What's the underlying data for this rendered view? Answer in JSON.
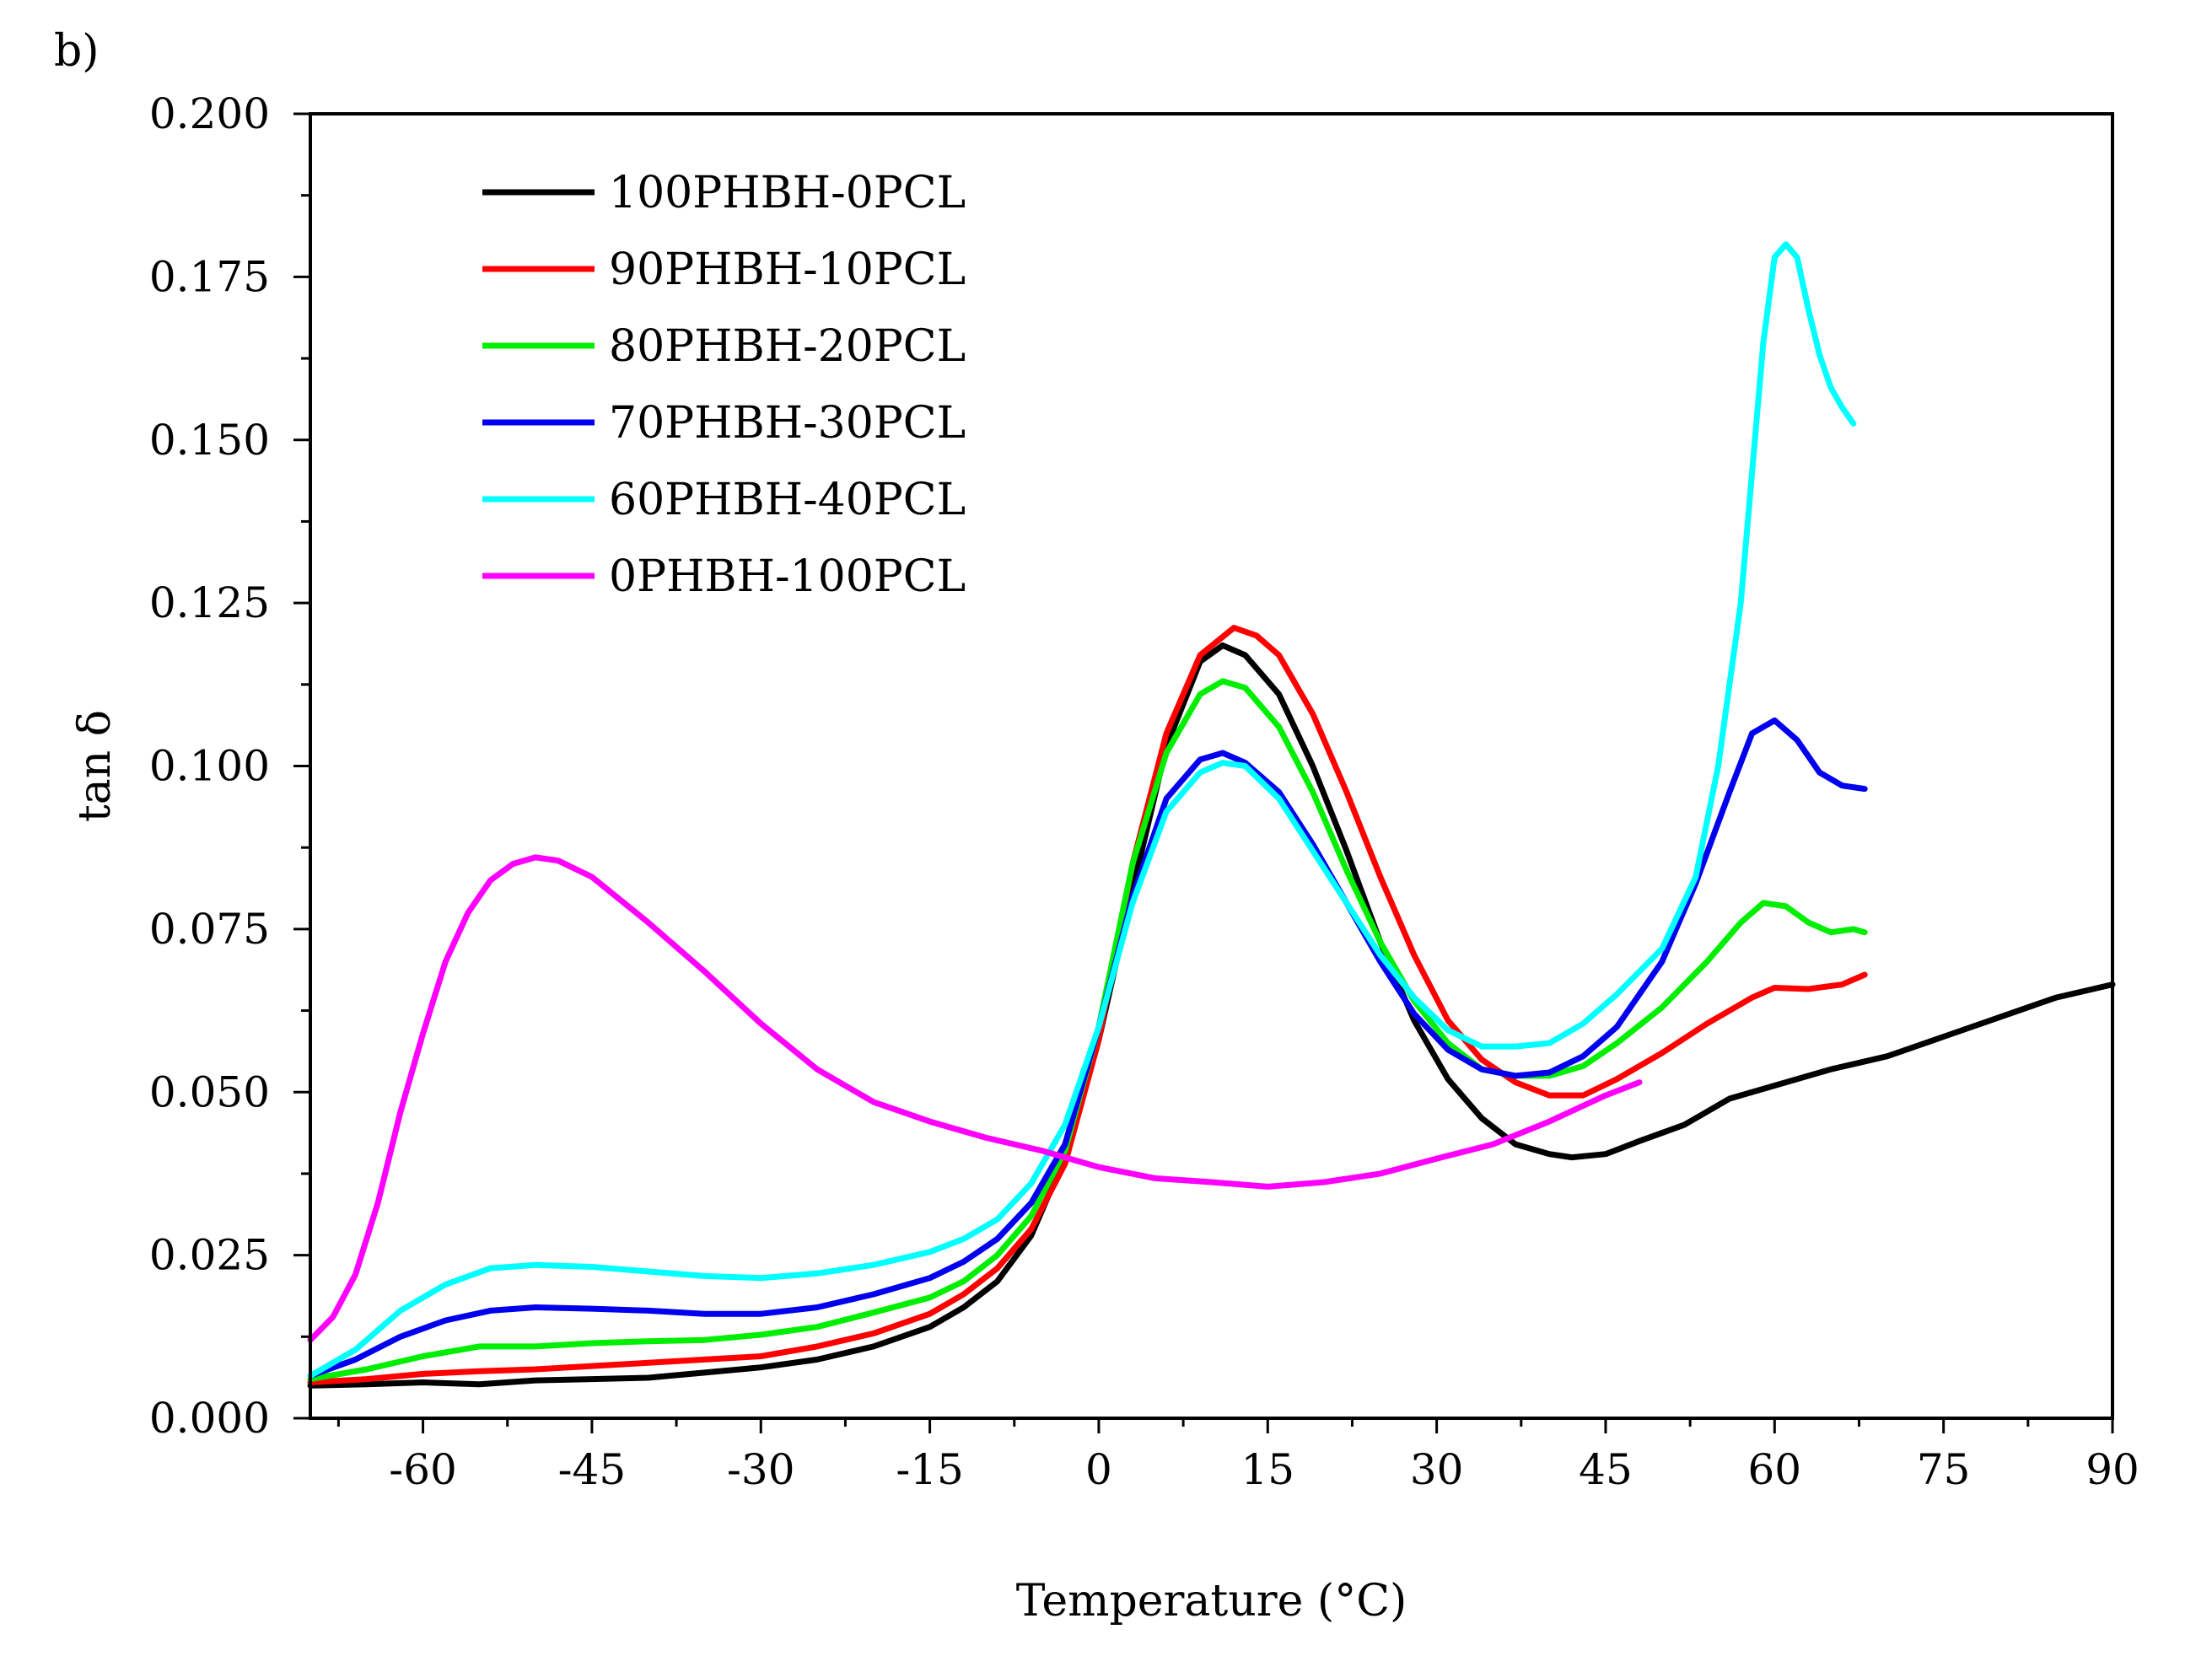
{
  "chart_data": {
    "type": "line",
    "panel_label": "b)",
    "title": "",
    "xlabel": "Temperature (°C)",
    "ylabel": "tan δ",
    "xlim": [
      -70,
      90
    ],
    "ylim": [
      0.0,
      0.2
    ],
    "x_ticks": [
      -60,
      -45,
      -30,
      -15,
      0,
      15,
      30,
      45,
      60,
      75,
      90
    ],
    "x_tick_labels": [
      "-60",
      "-45",
      "-30",
      "-15",
      "0",
      "15",
      "30",
      "45",
      "60",
      "75",
      "90"
    ],
    "y_ticks": [
      0.0,
      0.025,
      0.05,
      0.075,
      0.1,
      0.125,
      0.15,
      0.175,
      0.2
    ],
    "y_tick_labels": [
      "0.000",
      "0.025",
      "0.050",
      "0.075",
      "0.100",
      "0.125",
      "0.150",
      "0.175",
      "0.200"
    ],
    "grid": false,
    "legend_position": "top-left",
    "series": [
      {
        "name": "100PHBH-0PCL",
        "color": "#000000",
        "x": [
          -70,
          -65,
          -60,
          -55,
          -50,
          -45,
          -40,
          -35,
          -30,
          -25,
          -20,
          -15,
          -12,
          -9,
          -6,
          -3,
          0,
          3,
          6,
          9,
          11,
          13,
          16,
          19,
          22,
          25,
          28,
          31,
          34,
          37,
          40,
          42,
          45,
          48,
          52,
          56,
          60,
          65,
          70,
          75,
          80,
          85,
          90
        ],
        "y": [
          0.005,
          0.0052,
          0.0055,
          0.0052,
          0.0058,
          0.006,
          0.0062,
          0.007,
          0.0078,
          0.009,
          0.011,
          0.014,
          0.017,
          0.021,
          0.028,
          0.04,
          0.058,
          0.081,
          0.103,
          0.116,
          0.1185,
          0.117,
          0.111,
          0.1,
          0.087,
          0.073,
          0.061,
          0.052,
          0.046,
          0.042,
          0.0405,
          0.04,
          0.0405,
          0.0425,
          0.045,
          0.049,
          0.051,
          0.0535,
          0.0555,
          0.0585,
          0.0615,
          0.0645,
          0.0665
        ]
      },
      {
        "name": "90PHBH-10PCL",
        "color": "#ff0000",
        "x": [
          -70,
          -65,
          -60,
          -55,
          -50,
          -45,
          -40,
          -35,
          -30,
          -25,
          -20,
          -15,
          -12,
          -9,
          -6,
          -3,
          0,
          3,
          6,
          9,
          12,
          14,
          16,
          19,
          22,
          25,
          28,
          31,
          34,
          37,
          40,
          43,
          46,
          50,
          54,
          58,
          60,
          63,
          66,
          68
        ],
        "y": [
          0.0055,
          0.006,
          0.0068,
          0.0072,
          0.0075,
          0.008,
          0.0085,
          0.009,
          0.0095,
          0.011,
          0.013,
          0.016,
          0.019,
          0.023,
          0.029,
          0.039,
          0.058,
          0.085,
          0.105,
          0.117,
          0.1212,
          0.12,
          0.117,
          0.108,
          0.096,
          0.083,
          0.071,
          0.061,
          0.055,
          0.0515,
          0.0495,
          0.0495,
          0.052,
          0.056,
          0.0605,
          0.0645,
          0.066,
          0.0658,
          0.0665,
          0.068
        ]
      },
      {
        "name": "80PHBH-20PCL",
        "color": "#00ee00",
        "x": [
          -70,
          -65,
          -60,
          -55,
          -50,
          -45,
          -40,
          -35,
          -30,
          -25,
          -20,
          -15,
          -12,
          -9,
          -6,
          -3,
          0,
          3,
          6,
          9,
          11,
          13,
          16,
          19,
          22,
          25,
          28,
          31,
          34,
          37,
          40,
          43,
          46,
          50,
          54,
          57,
          59,
          61,
          63,
          65,
          67,
          68
        ],
        "y": [
          0.006,
          0.0075,
          0.0095,
          0.011,
          0.011,
          0.0115,
          0.0118,
          0.012,
          0.0128,
          0.014,
          0.0162,
          0.0185,
          0.021,
          0.025,
          0.031,
          0.041,
          0.06,
          0.085,
          0.102,
          0.111,
          0.113,
          0.112,
          0.106,
          0.096,
          0.084,
          0.073,
          0.064,
          0.0575,
          0.0535,
          0.0525,
          0.0525,
          0.054,
          0.0575,
          0.063,
          0.07,
          0.076,
          0.079,
          0.0785,
          0.076,
          0.0745,
          0.075,
          0.0745
        ]
      },
      {
        "name": "70PHBH-30PCL",
        "color": "#0000ee",
        "x": [
          -70,
          -66,
          -62,
          -58,
          -54,
          -50,
          -45,
          -40,
          -35,
          -30,
          -25,
          -20,
          -15,
          -12,
          -9,
          -6,
          -3,
          0,
          3,
          6,
          9,
          11,
          13,
          16,
          19,
          22,
          25,
          28,
          31,
          34,
          37,
          40,
          43,
          46,
          50,
          53,
          56,
          58,
          60,
          62,
          64,
          66,
          68
        ],
        "y": [
          0.0065,
          0.009,
          0.0125,
          0.015,
          0.0165,
          0.017,
          0.0168,
          0.0165,
          0.016,
          0.016,
          0.017,
          0.019,
          0.0215,
          0.024,
          0.0275,
          0.033,
          0.042,
          0.06,
          0.08,
          0.095,
          0.101,
          0.102,
          0.1005,
          0.096,
          0.088,
          0.079,
          0.07,
          0.062,
          0.0565,
          0.0535,
          0.0525,
          0.053,
          0.0555,
          0.06,
          0.07,
          0.082,
          0.096,
          0.105,
          0.107,
          0.104,
          0.099,
          0.097,
          0.0965
        ]
      },
      {
        "name": "60PHBH-40PCL",
        "color": "#00ffff",
        "x": [
          -70,
          -66,
          -62,
          -58,
          -54,
          -50,
          -45,
          -40,
          -35,
          -30,
          -25,
          -20,
          -15,
          -12,
          -9,
          -6,
          -3,
          0,
          3,
          6,
          9,
          11,
          13,
          16,
          19,
          22,
          25,
          28,
          31,
          34,
          37,
          40,
          43,
          46,
          50,
          53,
          55,
          57,
          58,
          59,
          60,
          61,
          62,
          63,
          64,
          65,
          66,
          67
        ],
        "y": [
          0.0065,
          0.0105,
          0.0165,
          0.0205,
          0.023,
          0.0235,
          0.0232,
          0.0225,
          0.0218,
          0.0215,
          0.0222,
          0.0235,
          0.0255,
          0.0275,
          0.0305,
          0.036,
          0.045,
          0.06,
          0.079,
          0.093,
          0.099,
          0.1005,
          0.1,
          0.095,
          0.087,
          0.079,
          0.071,
          0.0645,
          0.0595,
          0.057,
          0.057,
          0.0575,
          0.0605,
          0.065,
          0.072,
          0.083,
          0.1,
          0.125,
          0.145,
          0.165,
          0.178,
          0.18,
          0.178,
          0.17,
          0.163,
          0.158,
          0.155,
          0.1525
        ]
      },
      {
        "name": "0PHBH-100PCL",
        "color": "#ff00ff",
        "x": [
          -70,
          -68,
          -66,
          -64,
          -62,
          -60,
          -58,
          -56,
          -54,
          -52,
          -50,
          -48,
          -45,
          -40,
          -35,
          -30,
          -25,
          -20,
          -15,
          -10,
          -5,
          0,
          5,
          10,
          15,
          20,
          25,
          30,
          35,
          40,
          45,
          48
        ],
        "y": [
          0.012,
          0.0155,
          0.022,
          0.033,
          0.047,
          0.059,
          0.07,
          0.0775,
          0.0825,
          0.085,
          0.086,
          0.0855,
          0.083,
          0.076,
          0.0685,
          0.0605,
          0.0535,
          0.0485,
          0.0455,
          0.043,
          0.041,
          0.0385,
          0.0368,
          0.0362,
          0.0355,
          0.0362,
          0.0375,
          0.0398,
          0.042,
          0.0455,
          0.0495,
          0.0515
        ]
      }
    ]
  }
}
